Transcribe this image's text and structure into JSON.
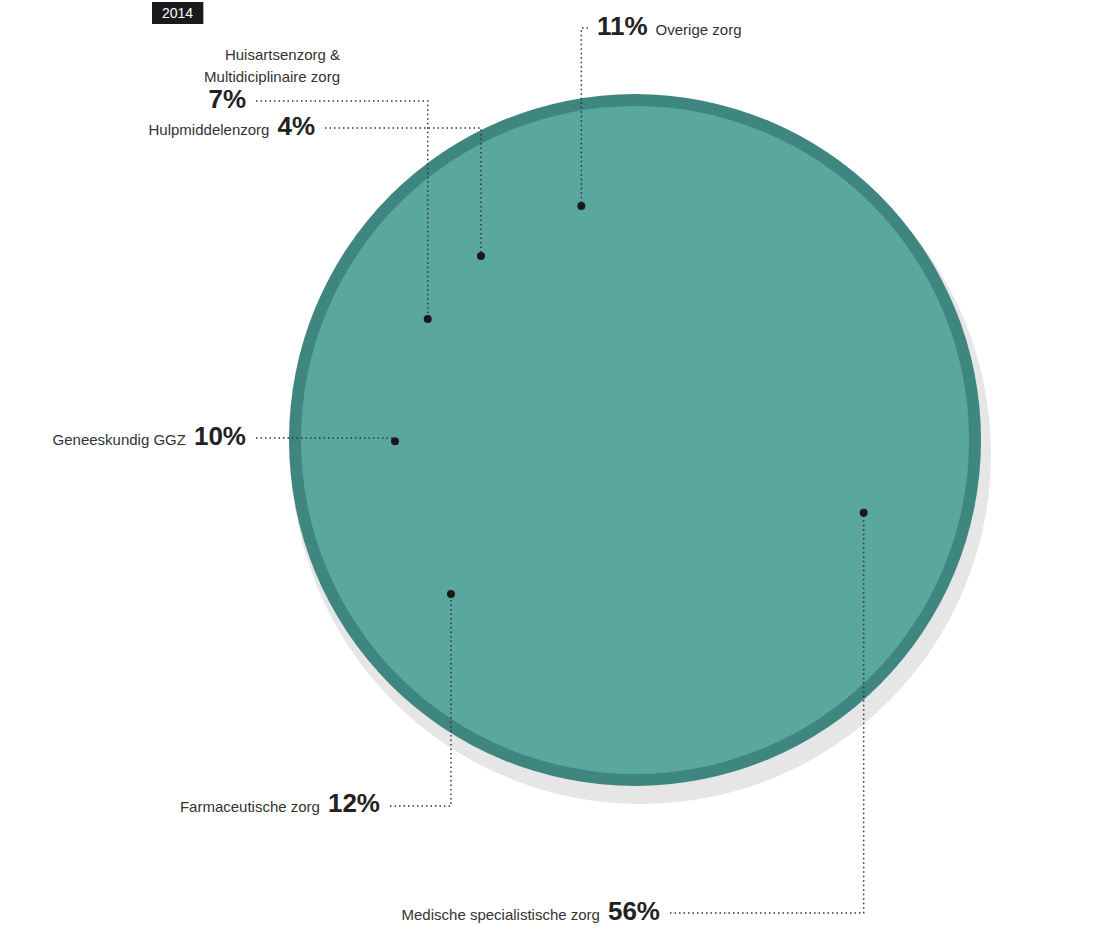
{
  "chart_data": {
    "type": "pie",
    "title": "2014",
    "categories": [
      "Medische specialistische zorg",
      "Farmaceutische zorg",
      "Geneeskundig GGZ",
      "Huisartsenzorg & Multidiciplinaire zorg",
      "Hulpmiddelenzorg",
      "Overige zorg"
    ],
    "values": [
      56,
      12,
      10,
      7,
      4,
      11
    ],
    "value_labels": [
      "56%",
      "12%",
      "10%",
      "7%",
      "4%",
      "11%"
    ],
    "colors": [
      "#f3f1ea",
      "#c9a477",
      "#c0202a",
      "#a67b48",
      "#6b3d1e",
      "#3e4a6a"
    ],
    "data_labels": true
  }
}
